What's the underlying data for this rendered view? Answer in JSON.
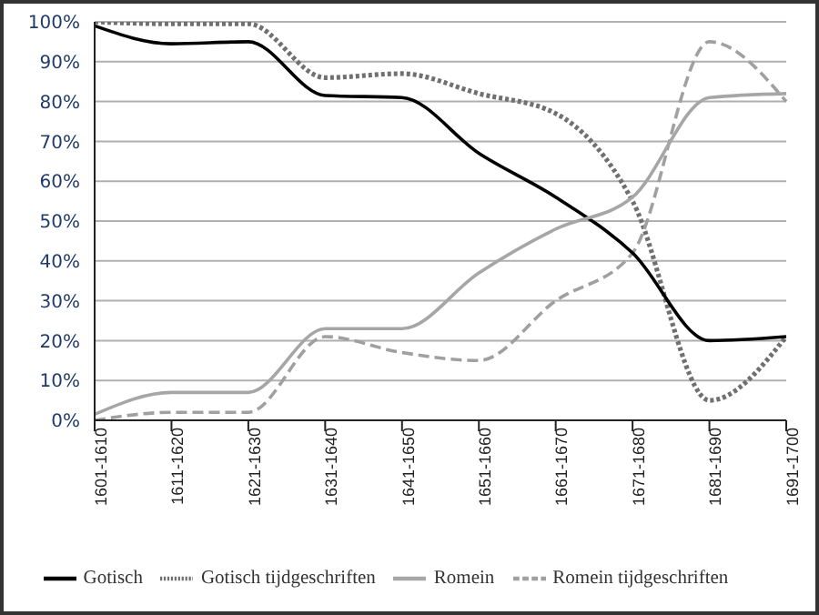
{
  "chart_data": {
    "type": "line",
    "categories": [
      "1601-1610",
      "1611-1620",
      "1621-1630",
      "1631-1640",
      "1641-1650",
      "1651-1660",
      "1661-1670",
      "1671-1680",
      "1681-1690",
      "1691-1700"
    ],
    "series": [
      {
        "name": "Gotisch tijdgeschriften",
        "color": "#707070",
        "line_style": "dotted",
        "values": [
          100,
          99.5,
          99.5,
          86,
          87,
          82,
          77,
          55,
          5,
          21
        ]
      },
      {
        "name": "Romein tijdgeschriften",
        "color": "#a0a0a0",
        "line_style": "dashed",
        "values": [
          0,
          2,
          2,
          21,
          17,
          15,
          30,
          42,
          95,
          80
        ]
      },
      {
        "name": "Gotisch",
        "color": "#000000",
        "line_style": "solid",
        "values": [
          99,
          94.5,
          95,
          81.5,
          81,
          67,
          56,
          42,
          20,
          21
        ]
      },
      {
        "name": "Romein",
        "color": "#a6a6a6",
        "line_style": "solid",
        "values": [
          1.5,
          7,
          7,
          23,
          23,
          37,
          48,
          56,
          81,
          82
        ]
      }
    ],
    "ylim": [
      0,
      100
    ],
    "yticks": [
      {
        "value": 0,
        "label": "0%"
      },
      {
        "value": 10,
        "label": "10%"
      },
      {
        "value": 20,
        "label": "20%"
      },
      {
        "value": 30,
        "label": "30%"
      },
      {
        "value": 40,
        "label": "40%"
      },
      {
        "value": 50,
        "label": "50%"
      },
      {
        "value": 60,
        "label": "60%"
      },
      {
        "value": 70,
        "label": "70%"
      },
      {
        "value": 80,
        "label": "80%"
      },
      {
        "value": 90,
        "label": "90%"
      },
      {
        "value": 100,
        "label": "100%"
      }
    ],
    "grid": "y",
    "legend": "bottom",
    "marker": "none"
  }
}
